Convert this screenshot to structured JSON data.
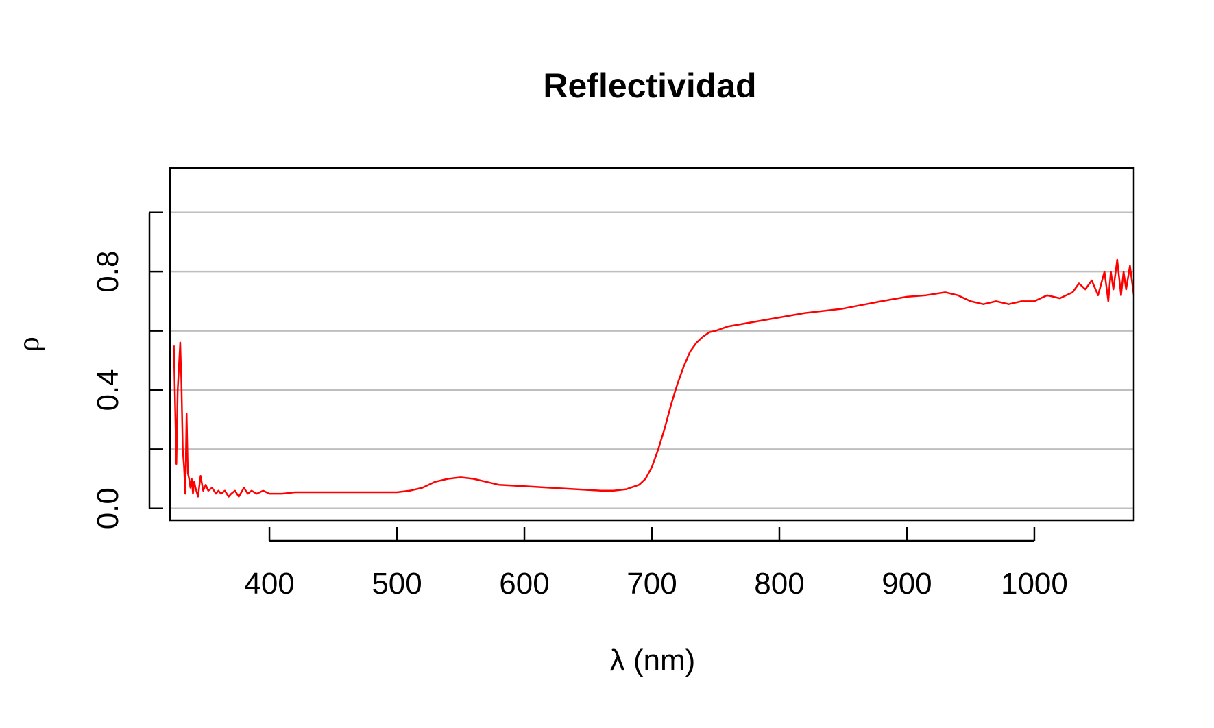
{
  "chart_data": {
    "type": "line",
    "title": "Reflectividad",
    "xlabel": "λ (nm)",
    "ylabel": "ρ",
    "xlim": [
      322,
      1078
    ],
    "ylim": [
      -0.04,
      1.15
    ],
    "x_ticks": [
      400,
      500,
      600,
      700,
      800,
      900,
      1000
    ],
    "x_tick_labels": [
      "400",
      "500",
      "600",
      "700",
      "800",
      "900",
      "1000"
    ],
    "y_ticks": [
      0.0,
      0.2,
      0.4,
      0.6,
      0.8,
      1.0
    ],
    "y_tick_labels": [
      "0.0",
      "",
      "0.4",
      "",
      "0.8",
      ""
    ],
    "grid": "horizontal",
    "line_color": "#ff0000",
    "grid_color": "#bebebe",
    "series": [
      {
        "x": [
          325,
          327,
          328,
          330,
          331,
          332,
          333,
          334,
          335,
          336,
          337,
          338,
          339,
          340,
          341,
          342,
          344,
          346,
          348,
          350,
          352,
          355,
          358,
          360,
          362,
          365,
          368,
          370,
          373,
          376,
          380,
          383,
          386,
          390,
          395,
          400,
          410,
          420,
          440,
          460,
          480,
          500,
          510,
          520,
          530,
          540,
          550,
          560,
          570,
          580,
          600,
          620,
          640,
          660,
          670,
          680,
          690,
          695,
          700,
          705,
          710,
          715,
          720,
          725,
          730,
          735,
          740,
          745,
          750,
          760,
          780,
          800,
          820,
          850,
          880,
          900,
          915,
          930,
          940,
          950,
          960,
          970,
          980,
          990,
          1000,
          1010,
          1020,
          1030,
          1035,
          1040,
          1045,
          1050,
          1055,
          1058,
          1060,
          1062,
          1065,
          1068,
          1070,
          1072,
          1075,
          1078
        ],
        "y": [
          0.55,
          0.15,
          0.4,
          0.56,
          0.42,
          0.2,
          0.14,
          0.05,
          0.32,
          0.12,
          0.1,
          0.07,
          0.1,
          0.05,
          0.09,
          0.07,
          0.04,
          0.11,
          0.06,
          0.08,
          0.06,
          0.07,
          0.05,
          0.06,
          0.05,
          0.06,
          0.04,
          0.05,
          0.06,
          0.04,
          0.07,
          0.05,
          0.06,
          0.05,
          0.06,
          0.05,
          0.05,
          0.055,
          0.055,
          0.055,
          0.055,
          0.055,
          0.06,
          0.07,
          0.09,
          0.1,
          0.105,
          0.1,
          0.09,
          0.08,
          0.075,
          0.07,
          0.065,
          0.06,
          0.06,
          0.065,
          0.08,
          0.1,
          0.14,
          0.2,
          0.27,
          0.35,
          0.42,
          0.48,
          0.53,
          0.56,
          0.58,
          0.595,
          0.6,
          0.615,
          0.63,
          0.645,
          0.66,
          0.675,
          0.7,
          0.715,
          0.72,
          0.73,
          0.72,
          0.7,
          0.69,
          0.7,
          0.69,
          0.7,
          0.7,
          0.72,
          0.71,
          0.73,
          0.76,
          0.74,
          0.77,
          0.72,
          0.8,
          0.7,
          0.8,
          0.74,
          0.84,
          0.72,
          0.8,
          0.74,
          0.82,
          0.72
        ]
      }
    ]
  }
}
